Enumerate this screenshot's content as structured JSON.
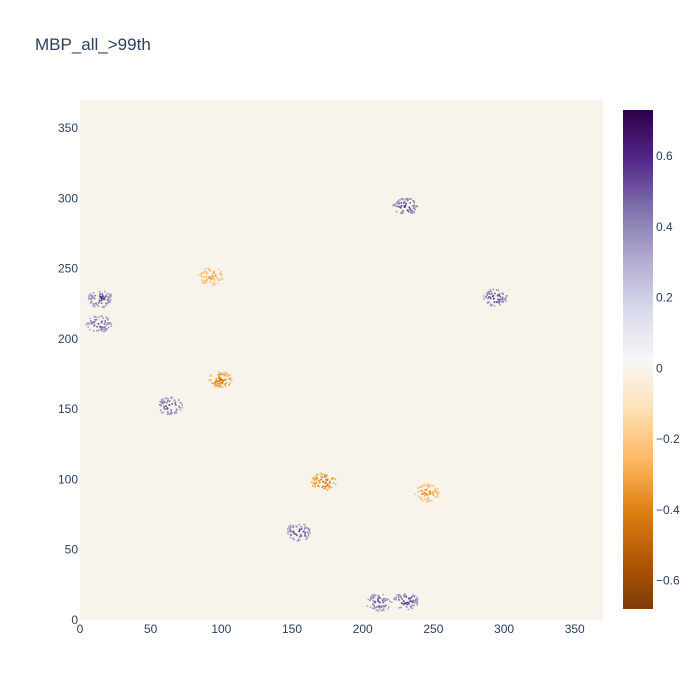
{
  "chart_data": {
    "type": "heatmap",
    "title": "MBP_all_>99th",
    "xlabel": "",
    "ylabel": "",
    "xlim": [
      0,
      370
    ],
    "ylim": [
      0,
      370
    ],
    "x_ticks": [
      "0",
      "50",
      "100",
      "150",
      "200",
      "250",
      "300",
      "350"
    ],
    "y_ticks": [
      "0",
      "50",
      "100",
      "150",
      "200",
      "250",
      "300",
      "350"
    ],
    "colorbar": {
      "min": -0.68,
      "max": 0.73,
      "ticks": [
        "−0.6",
        "−0.4",
        "−0.2",
        "0",
        "0.2",
        "0.4",
        "0.6"
      ],
      "colorscale": [
        "#7f3b08",
        "#b35806",
        "#e08214",
        "#fdb863",
        "#fee0b6",
        "#f7f7f7",
        "#d8daeb",
        "#b2abd2",
        "#8073ac",
        "#542788",
        "#2d004b"
      ]
    },
    "background_value": 0,
    "clusters": [
      {
        "x": 230,
        "y": 295,
        "value": 0.65
      },
      {
        "x": 293,
        "y": 230,
        "value": 0.63
      },
      {
        "x": 14,
        "y": 229,
        "value": 0.62
      },
      {
        "x": 13,
        "y": 211,
        "value": 0.6
      },
      {
        "x": 63,
        "y": 153,
        "value": 0.62
      },
      {
        "x": 99,
        "y": 171,
        "value": -0.48
      },
      {
        "x": 92,
        "y": 245,
        "value": -0.35
      },
      {
        "x": 172,
        "y": 99,
        "value": -0.52
      },
      {
        "x": 245,
        "y": 91,
        "value": -0.4
      },
      {
        "x": 154,
        "y": 63,
        "value": 0.62
      },
      {
        "x": 211,
        "y": 13,
        "value": 0.6
      },
      {
        "x": 230,
        "y": 14,
        "value": 0.64
      }
    ]
  }
}
